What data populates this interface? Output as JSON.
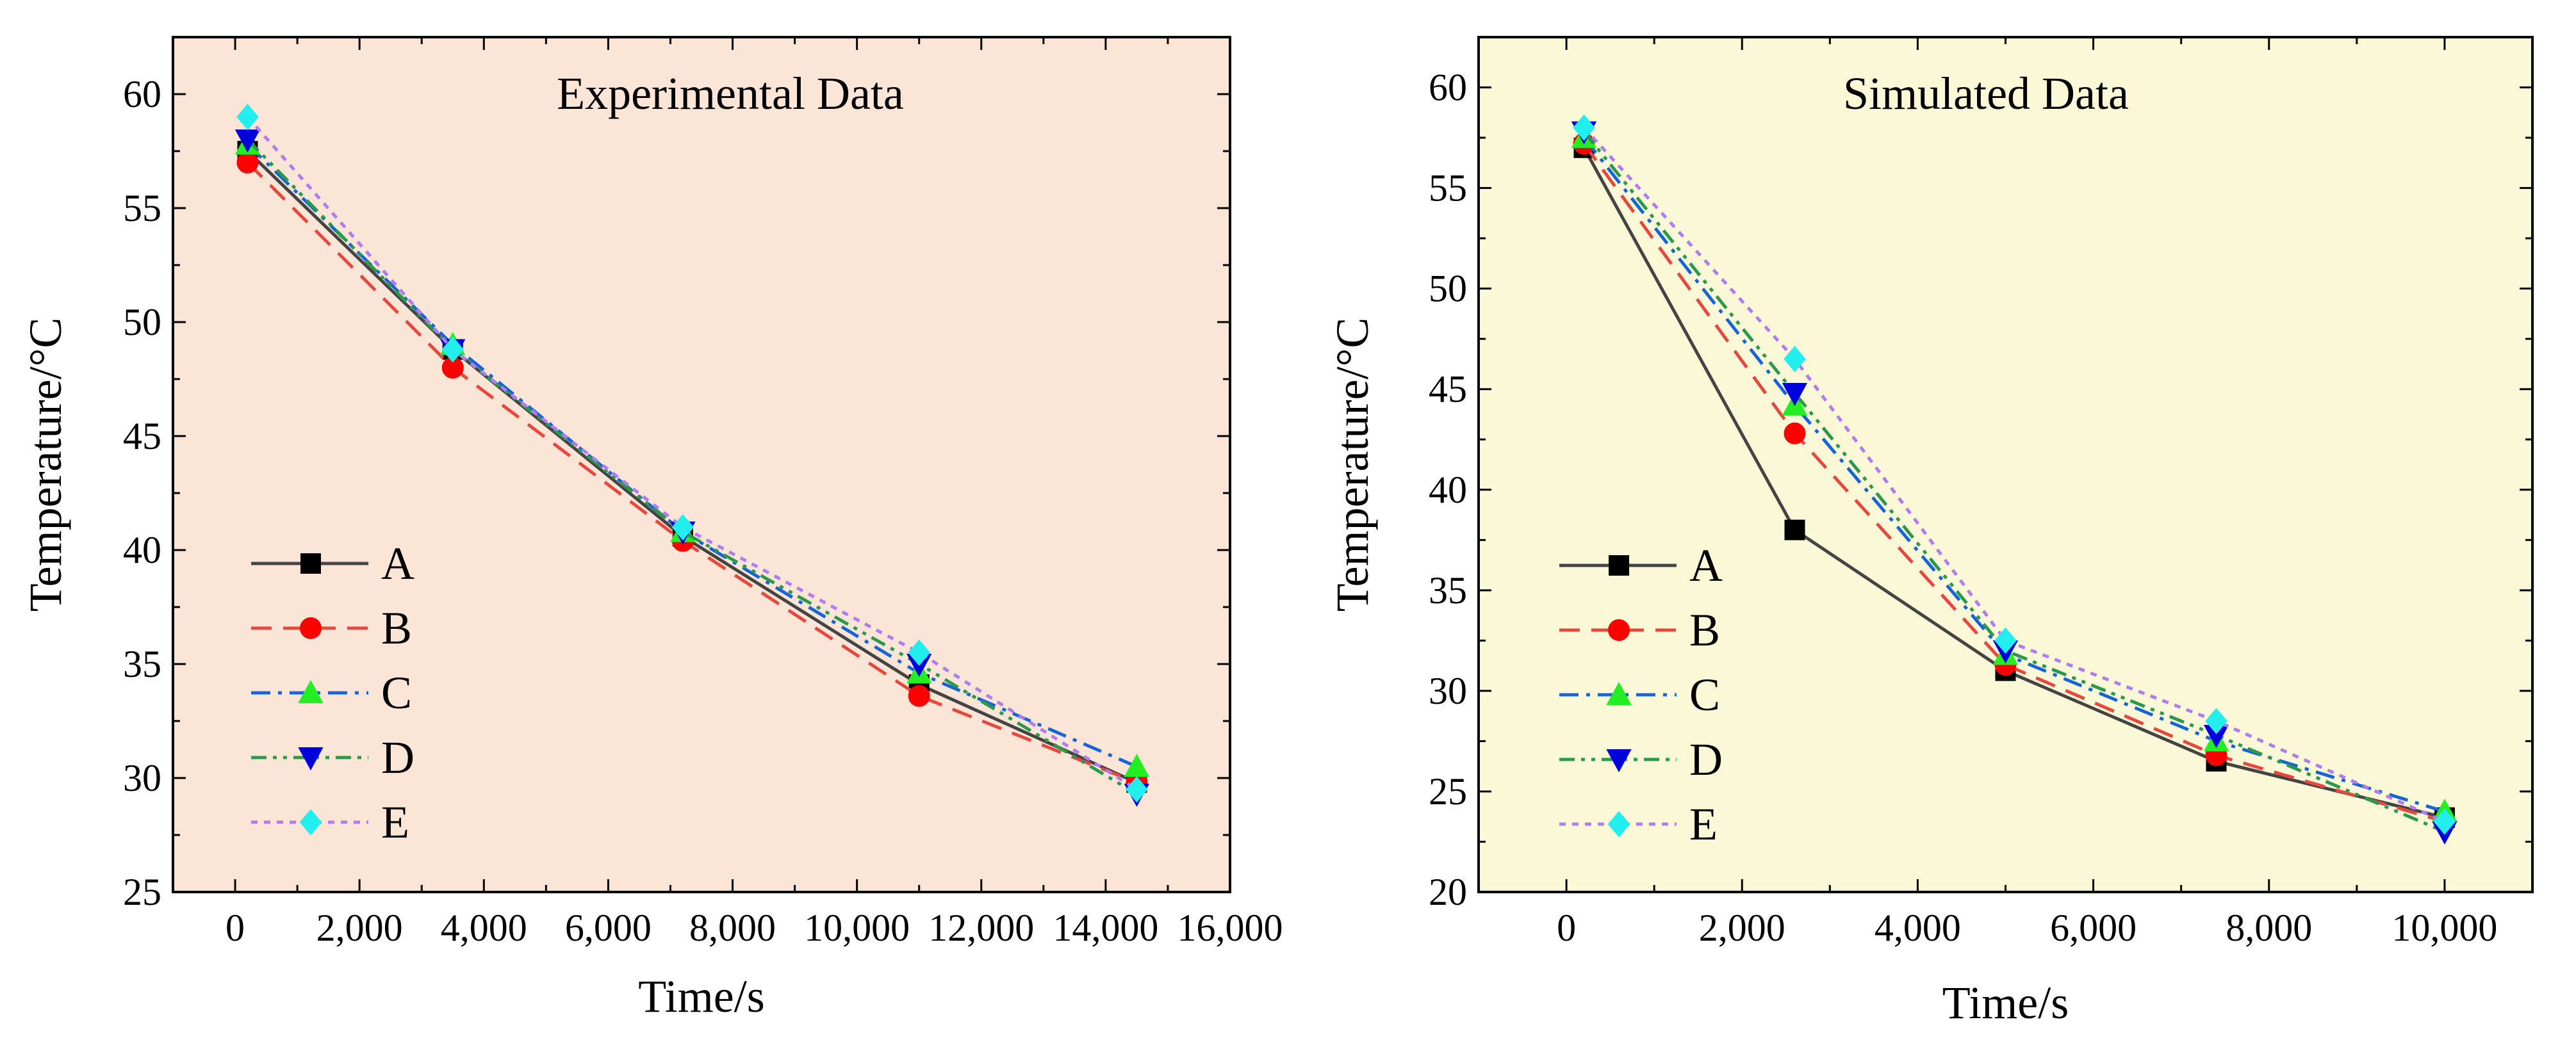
{
  "chart_data": [
    {
      "type": "line",
      "title": "Experimental Data",
      "xlabel": "Time/s",
      "ylabel": "Temperature/°C",
      "xlim": [
        -1000,
        16000
      ],
      "ylim": [
        25,
        62.5
      ],
      "xticks": [
        0,
        2000,
        4000,
        6000,
        8000,
        10000,
        12000,
        14000,
        16000
      ],
      "xtick_labels": [
        "0",
        "2,000",
        "4,000",
        "6,000",
        "8,000",
        "10,000",
        "12,000",
        "14,000",
        "16,000"
      ],
      "yticks": [
        25,
        30,
        35,
        40,
        45,
        50,
        55,
        60
      ],
      "ytick_labels": [
        "25",
        "30",
        "35",
        "40",
        "45",
        "50",
        "55",
        "60"
      ],
      "background": "#fbe5d6",
      "legend_position": "lower-left",
      "x": [
        200,
        3500,
        7200,
        11000,
        14500
      ],
      "series": [
        {
          "name": "A",
          "values": [
            57.5,
            48.8,
            40.6,
            34.1,
            29.8
          ]
        },
        {
          "name": "B",
          "values": [
            57.0,
            48.0,
            40.4,
            33.6,
            29.8
          ]
        },
        {
          "name": "C",
          "values": [
            57.8,
            49.0,
            40.8,
            34.6,
            30.5
          ]
        },
        {
          "name": "D",
          "values": [
            58.0,
            48.8,
            40.8,
            35.0,
            29.3
          ]
        },
        {
          "name": "E",
          "values": [
            59.0,
            48.8,
            41.0,
            35.5,
            29.5
          ]
        }
      ]
    },
    {
      "type": "line",
      "title": "Simulated Data",
      "xlabel": "Time/s",
      "ylabel": "Temperature/°C",
      "xlim": [
        -1000,
        11000
      ],
      "ylim": [
        20,
        62.5
      ],
      "xticks": [
        0,
        2000,
        4000,
        6000,
        8000,
        10000
      ],
      "xtick_labels": [
        "0",
        "2,000",
        "4,000",
        "6,000",
        "8,000",
        "10,000"
      ],
      "yticks": [
        20,
        25,
        30,
        35,
        40,
        45,
        50,
        55,
        60
      ],
      "ytick_labels": [
        "20",
        "25",
        "30",
        "35",
        "40",
        "45",
        "50",
        "55",
        "60"
      ],
      "background": "#fbf8d8",
      "legend_position": "lower-left",
      "x": [
        200,
        2600,
        5000,
        7400,
        10000
      ],
      "series": [
        {
          "name": "A",
          "values": [
            57.0,
            38.0,
            31.0,
            26.5,
            23.7
          ]
        },
        {
          "name": "B",
          "values": [
            57.2,
            42.8,
            31.3,
            26.8,
            23.5
          ]
        },
        {
          "name": "C",
          "values": [
            57.5,
            44.2,
            31.8,
            27.5,
            24.0
          ]
        },
        {
          "name": "D",
          "values": [
            57.8,
            44.8,
            32.0,
            27.8,
            23.0
          ]
        },
        {
          "name": "E",
          "values": [
            58.0,
            46.5,
            32.5,
            28.5,
            23.5
          ]
        }
      ]
    }
  ],
  "series_styles": {
    "A": {
      "color": "#444444",
      "marker_color": "#000000",
      "marker": "square",
      "dash": ""
    },
    "B": {
      "color": "#e8473d",
      "marker_color": "#ff0000",
      "marker": "circle",
      "dash": "32,18"
    },
    "C": {
      "color": "#1565d8",
      "marker_color": "#22ee22",
      "marker": "triangle-up",
      "dash": "30,12,6,12"
    },
    "D": {
      "color": "#2a9a4a",
      "marker_color": "#0000dd",
      "marker": "triangle-down",
      "dash": "24,10,6,10,6,10"
    },
    "E": {
      "color": "#b07cf0",
      "marker_color": "#22eeee",
      "marker": "diamond",
      "dash": "10,10"
    }
  }
}
